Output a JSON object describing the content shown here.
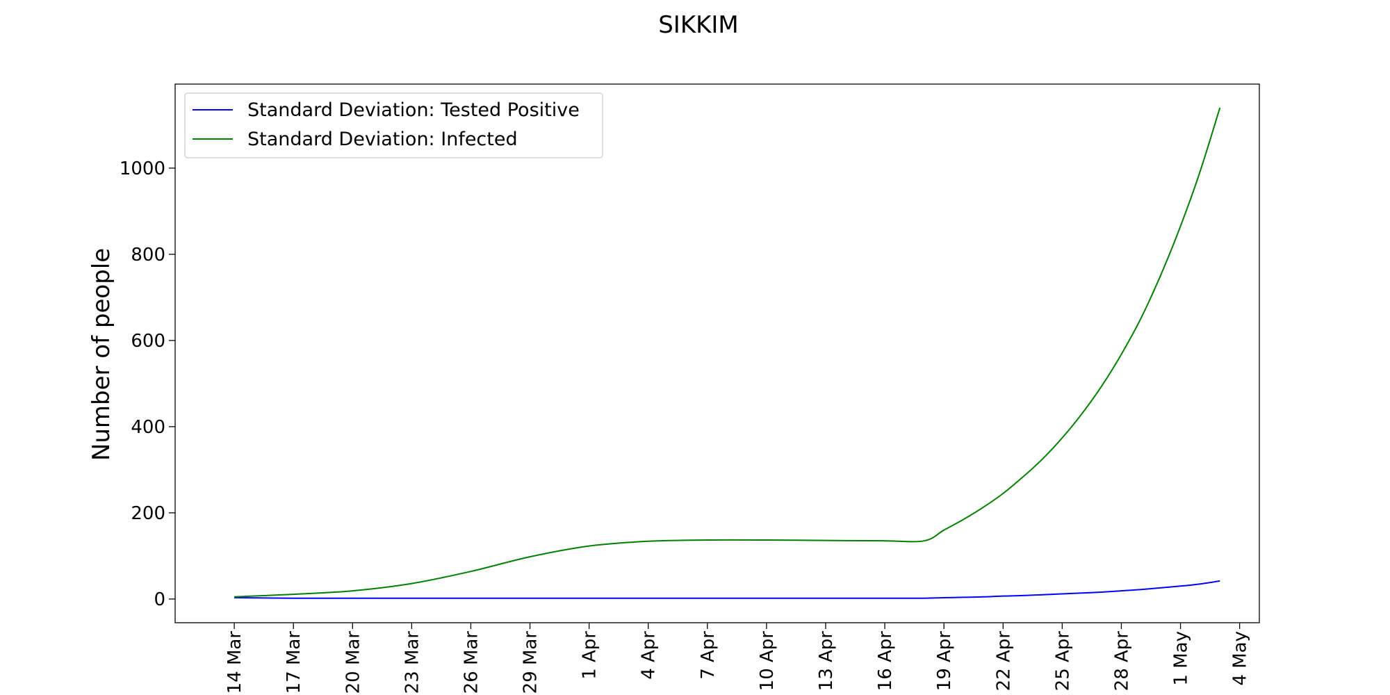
{
  "chart_data": {
    "type": "line",
    "title": "SIKKIM",
    "xlabel": "",
    "ylabel": "Number of people",
    "x_ticks": [
      "14 Mar",
      "17 Mar",
      "20 Mar",
      "23 Mar",
      "26 Mar",
      "29 Mar",
      "1 Apr",
      "4 Apr",
      "7 Apr",
      "10 Apr",
      "13 Apr",
      "16 Apr",
      "19 Apr",
      "22 Apr",
      "25 Apr",
      "28 Apr",
      "1 May",
      "4 May"
    ],
    "y_ticks": [
      0,
      200,
      400,
      600,
      800,
      1000
    ],
    "ylim": [
      -55,
      1195
    ],
    "xlim": [
      "2020-03-11",
      "2020-05-05"
    ],
    "grid": false,
    "legend_position": "top-left",
    "x": [
      "2020-03-14",
      "2020-03-17",
      "2020-03-20",
      "2020-03-23",
      "2020-03-26",
      "2020-03-29",
      "2020-04-01",
      "2020-04-04",
      "2020-04-07",
      "2020-04-10",
      "2020-04-13",
      "2020-04-16",
      "2020-04-18",
      "2020-04-19",
      "2020-04-20",
      "2020-04-21",
      "2020-04-22",
      "2020-04-23",
      "2020-04-24",
      "2020-04-25",
      "2020-04-26",
      "2020-04-27",
      "2020-04-28",
      "2020-04-29",
      "2020-04-30",
      "2020-05-01",
      "2020-05-02",
      "2020-05-03"
    ],
    "series": [
      {
        "name": "Standard Deviation: Tested Positive",
        "color": "#0000ff",
        "values": [
          3,
          2,
          2,
          2,
          2,
          2,
          2,
          2,
          2,
          2,
          2,
          2,
          2,
          3,
          4,
          5,
          7,
          8,
          10,
          12,
          14,
          16,
          19,
          22,
          26,
          30,
          35,
          42
        ]
      },
      {
        "name": "Standard Deviation: Infected",
        "color": "#008000",
        "values": [
          5,
          11,
          19,
          36,
          64,
          98,
          123,
          134,
          137,
          137,
          136,
          135,
          135,
          160,
          185,
          213,
          245,
          283,
          325,
          374,
          430,
          494,
          568,
          652,
          752,
          865,
          993,
          1140
        ]
      }
    ]
  }
}
